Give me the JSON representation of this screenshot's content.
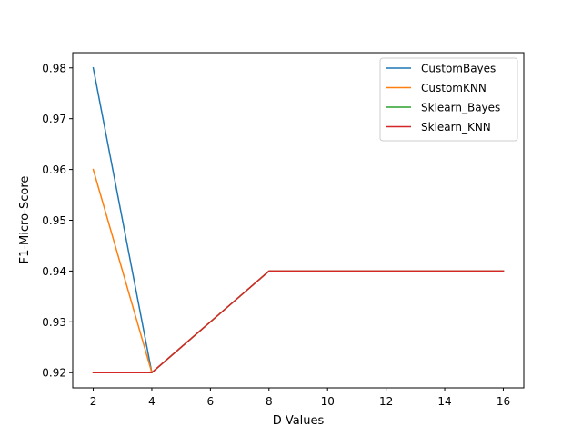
{
  "chart_data": {
    "type": "line",
    "title": "",
    "xlabel": "D Values",
    "ylabel": "F1-Micro-Score",
    "x": [
      2,
      4,
      8,
      16
    ],
    "series": [
      {
        "name": "CustomBayes",
        "color": "#1f77b4",
        "values": [
          0.98,
          0.92,
          0.94,
          0.94
        ]
      },
      {
        "name": "CustomKNN",
        "color": "#ff7f0e",
        "values": [
          0.96,
          0.92,
          0.94,
          0.94
        ]
      },
      {
        "name": "Sklearn_Bayes",
        "color": "#2ca02c",
        "values": [
          0.92,
          0.92,
          0.94,
          0.94
        ]
      },
      {
        "name": "Sklearn_KNN",
        "color": "#d62728",
        "values": [
          0.92,
          0.92,
          0.94,
          0.94
        ]
      }
    ],
    "xlim": [
      1.3,
      16.7
    ],
    "ylim": [
      0.917,
      0.983
    ],
    "xticks": [
      2,
      4,
      6,
      8,
      10,
      12,
      14,
      16
    ],
    "yticks": [
      0.92,
      0.93,
      0.94,
      0.95,
      0.96,
      0.97,
      0.98
    ],
    "ytick_labels": [
      "0.92",
      "0.93",
      "0.94",
      "0.95",
      "0.96",
      "0.97",
      "0.98"
    ],
    "grid": false,
    "legend_position": "top-right"
  }
}
